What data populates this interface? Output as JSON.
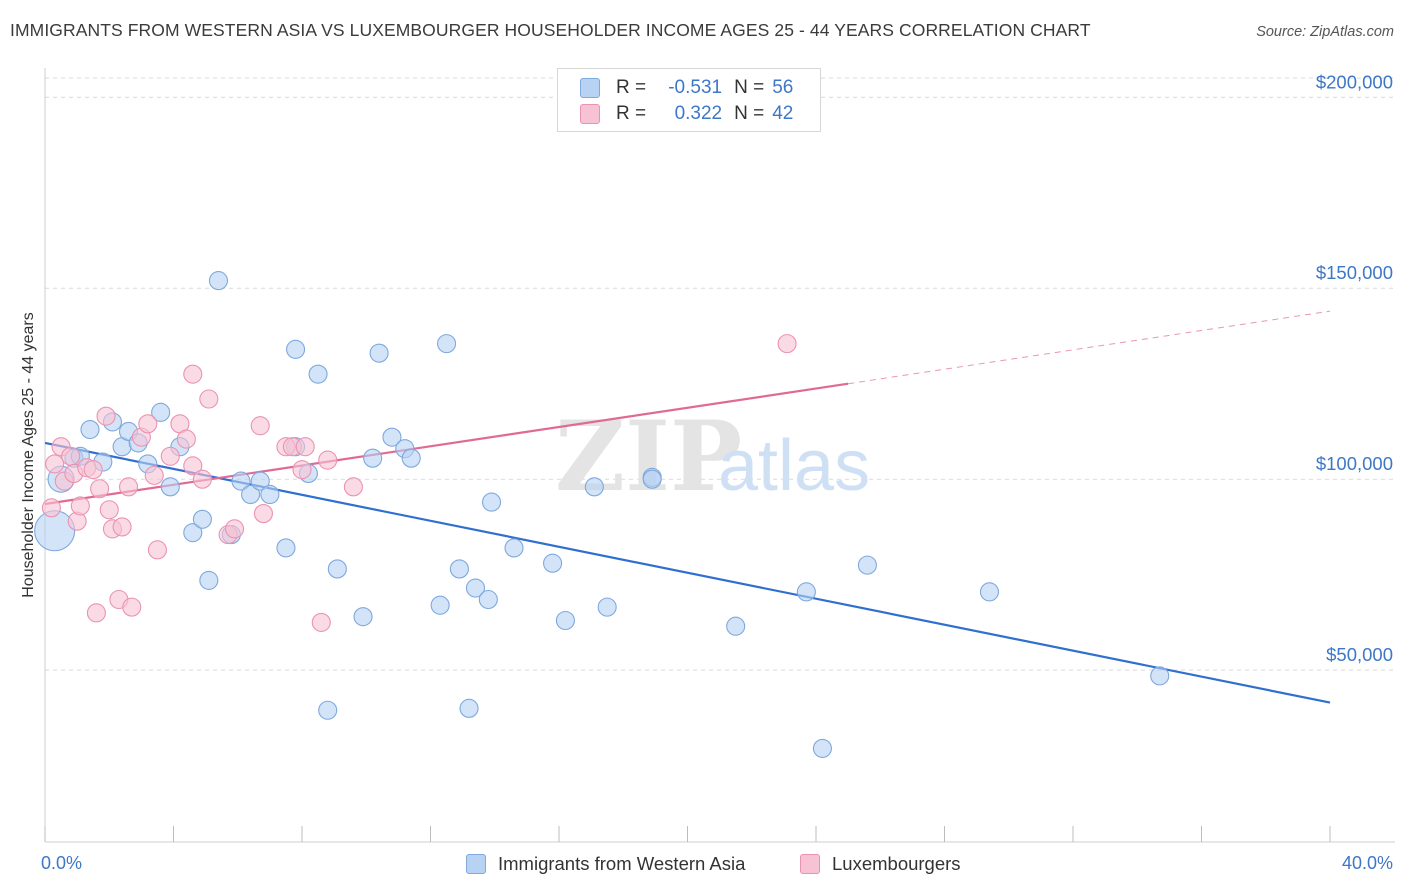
{
  "title": "IMMIGRANTS FROM WESTERN ASIA VS LUXEMBOURGER HOUSEHOLDER INCOME AGES 25 - 44 YEARS CORRELATION CHART",
  "source": "Source: ZipAtlas.com",
  "watermark": {
    "zip": "ZIP",
    "atlas": "atlas"
  },
  "legend": {
    "rows": [
      {
        "r_label": "R =",
        "r_value": "-0.531",
        "n_label": "N =",
        "n_value": "56"
      },
      {
        "r_label": "R =",
        "r_value": "0.322",
        "n_label": "N =",
        "n_value": "42"
      }
    ]
  },
  "colors": {
    "blue_fill": "#b8d2f4",
    "blue_stroke": "#7ea8de",
    "blue_line": "#2f6fcf",
    "pink_fill": "#f7c3d4",
    "pink_stroke": "#ea93b1",
    "pink_line": "#e06a94",
    "grid": "#d9d9d9",
    "axis_text": "#3d77c8"
  },
  "chart_data": {
    "type": "scatter",
    "xlabel": "",
    "ylabel": "Householder Income Ages 25 - 44 years",
    "xlim": [
      0,
      40
    ],
    "ylim": [
      5000,
      215000
    ],
    "x_tick_labels": [
      "0.0%",
      "40.0%"
    ],
    "y_ticks": [
      50000,
      100000,
      150000,
      200000
    ],
    "y_tick_labels": [
      "$50,000",
      "$100,000",
      "$150,000",
      "$200,000"
    ],
    "grid": "horizontal dashed",
    "legend_position": "bottom-center",
    "series": [
      {
        "name": "Immigrants from Western Asia",
        "color": "#b8d2f4",
        "points": [
          [
            0.3,
            86500
          ],
          [
            0.5,
            100000
          ],
          [
            0.9,
            105500
          ],
          [
            1.1,
            106000
          ],
          [
            1.4,
            113000
          ],
          [
            1.8,
            104500
          ],
          [
            2.1,
            115000
          ],
          [
            2.4,
            108500
          ],
          [
            2.6,
            112500
          ],
          [
            2.9,
            109500
          ],
          [
            3.2,
            104000
          ],
          [
            3.6,
            117500
          ],
          [
            3.9,
            98000
          ],
          [
            4.2,
            108500
          ],
          [
            4.6,
            86000
          ],
          [
            4.9,
            89500
          ],
          [
            5.1,
            73500
          ],
          [
            5.4,
            152000
          ],
          [
            5.8,
            85500
          ],
          [
            6.1,
            99500
          ],
          [
            6.4,
            96000
          ],
          [
            6.7,
            99500
          ],
          [
            7.0,
            96000
          ],
          [
            7.5,
            82000
          ],
          [
            7.8,
            108500
          ],
          [
            7.8,
            134000
          ],
          [
            8.2,
            101500
          ],
          [
            8.5,
            127500
          ],
          [
            8.8,
            39500
          ],
          [
            9.1,
            76500
          ],
          [
            9.9,
            64000
          ],
          [
            10.2,
            105500
          ],
          [
            10.4,
            133000
          ],
          [
            10.8,
            111000
          ],
          [
            11.2,
            108000
          ],
          [
            11.4,
            105500
          ],
          [
            12.3,
            67000
          ],
          [
            12.5,
            135500
          ],
          [
            12.9,
            76500
          ],
          [
            13.2,
            40000
          ],
          [
            13.4,
            71500
          ],
          [
            13.8,
            68500
          ],
          [
            13.9,
            94000
          ],
          [
            14.6,
            82000
          ],
          [
            15.8,
            78000
          ],
          [
            16.2,
            63000
          ],
          [
            17.1,
            98000
          ],
          [
            17.5,
            66500
          ],
          [
            18.9,
            100500
          ],
          [
            18.9,
            100000
          ],
          [
            21.5,
            61500
          ],
          [
            23.7,
            70500
          ],
          [
            24.2,
            29500
          ],
          [
            25.6,
            77500
          ],
          [
            29.4,
            70500
          ],
          [
            34.7,
            48500
          ]
        ]
      },
      {
        "name": "Luxembourgers",
        "color": "#f7c3d4",
        "points": [
          [
            0.2,
            92500
          ],
          [
            0.3,
            104000
          ],
          [
            0.5,
            108500
          ],
          [
            0.6,
            99500
          ],
          [
            0.8,
            106000
          ],
          [
            0.9,
            101500
          ],
          [
            1.0,
            89000
          ],
          [
            1.1,
            93000
          ],
          [
            1.3,
            103000
          ],
          [
            1.5,
            102500
          ],
          [
            1.6,
            65000
          ],
          [
            1.7,
            97500
          ],
          [
            1.9,
            116500
          ],
          [
            2.0,
            92000
          ],
          [
            2.1,
            87000
          ],
          [
            2.3,
            68500
          ],
          [
            2.4,
            87500
          ],
          [
            2.6,
            98000
          ],
          [
            2.7,
            66500
          ],
          [
            3.0,
            111000
          ],
          [
            3.2,
            114500
          ],
          [
            3.4,
            101000
          ],
          [
            3.5,
            81500
          ],
          [
            3.9,
            106000
          ],
          [
            4.2,
            114500
          ],
          [
            4.4,
            110500
          ],
          [
            4.6,
            103500
          ],
          [
            4.6,
            127500
          ],
          [
            4.9,
            100000
          ],
          [
            5.1,
            121000
          ],
          [
            5.7,
            85500
          ],
          [
            5.9,
            87000
          ],
          [
            6.7,
            114000
          ],
          [
            6.8,
            91000
          ],
          [
            7.5,
            108500
          ],
          [
            7.7,
            108500
          ],
          [
            8.0,
            102500
          ],
          [
            8.1,
            108500
          ],
          [
            8.6,
            62500
          ],
          [
            8.8,
            105000
          ],
          [
            9.6,
            98000
          ],
          [
            23.1,
            135500
          ]
        ]
      }
    ],
    "trend_lines": [
      {
        "series": "Immigrants from Western Asia",
        "x": [
          0,
          40
        ],
        "y": [
          109500,
          41500
        ]
      },
      {
        "series": "Luxembourgers",
        "x": [
          0,
          25
        ],
        "y": [
          93500,
          125000
        ],
        "extended_dashed_to": [
          40,
          144000
        ]
      }
    ]
  }
}
